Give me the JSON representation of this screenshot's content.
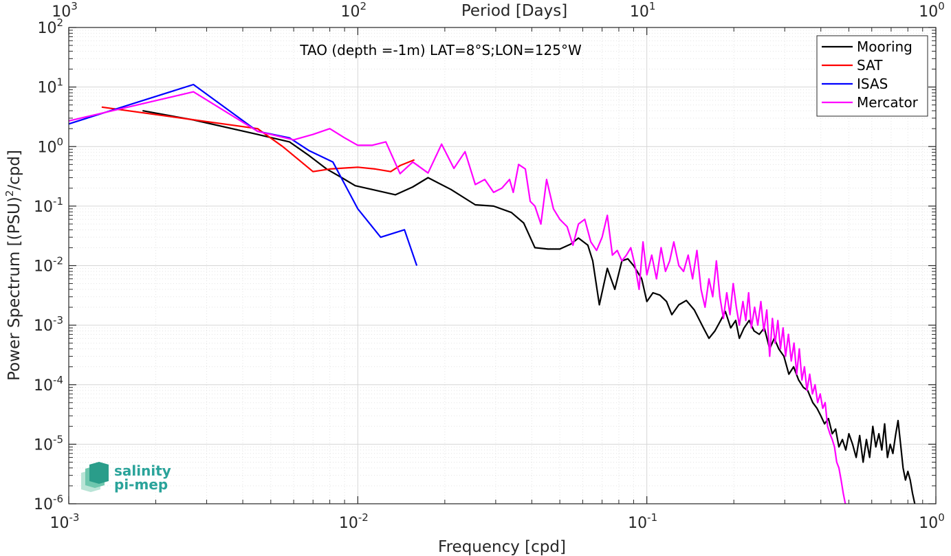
{
  "chart_data": {
    "type": "line",
    "title": "TAO (depth =-1m) LAT=8°S;LON=125°W",
    "xlabel": "Frequency [cpd]",
    "ylabel": "Power Spectrum [(PSU)",
    "ylabel_sup": "2",
    "ylabel_tail": "/cpd]",
    "x2label": "Period [Days]",
    "xscale": "log",
    "yscale": "log",
    "xlim": [
      0.001,
      1
    ],
    "ylim": [
      1e-06,
      100
    ],
    "grid": true,
    "legend_position": "top-right",
    "x_ticks": [
      {
        "base": "10",
        "exp": "-3"
      },
      {
        "base": "10",
        "exp": "-2"
      },
      {
        "base": "10",
        "exp": "-1"
      },
      {
        "base": "10",
        "exp": "0"
      }
    ],
    "x2_ticks": [
      {
        "base": "10",
        "exp": "3"
      },
      {
        "base": "10",
        "exp": "2"
      },
      {
        "base": "10",
        "exp": "1"
      },
      {
        "base": "10",
        "exp": "0"
      }
    ],
    "y_ticks": [
      {
        "base": "10",
        "exp": "-6"
      },
      {
        "base": "10",
        "exp": "-5"
      },
      {
        "base": "10",
        "exp": "-4"
      },
      {
        "base": "10",
        "exp": "-3"
      },
      {
        "base": "10",
        "exp": "-2"
      },
      {
        "base": "10",
        "exp": "-1"
      },
      {
        "base": "10",
        "exp": "0"
      },
      {
        "base": "10",
        "exp": "1"
      },
      {
        "base": "10",
        "exp": "2"
      }
    ],
    "series": [
      {
        "name": "Mooring",
        "color": "#000000",
        "points": [
          [
            0.0018,
            4.0
          ],
          [
            0.0027,
            2.8
          ],
          [
            0.0045,
            1.6
          ],
          [
            0.0058,
            1.2
          ],
          [
            0.0068,
            0.7
          ],
          [
            0.0078,
            0.42
          ],
          [
            0.0088,
            0.3
          ],
          [
            0.0098,
            0.22
          ],
          [
            0.0112,
            0.19
          ],
          [
            0.0135,
            0.155
          ],
          [
            0.0155,
            0.21
          ],
          [
            0.0175,
            0.3
          ],
          [
            0.021,
            0.19
          ],
          [
            0.0255,
            0.105
          ],
          [
            0.0295,
            0.1
          ],
          [
            0.034,
            0.078
          ],
          [
            0.0375,
            0.052
          ],
          [
            0.041,
            0.02
          ],
          [
            0.0455,
            0.019
          ],
          [
            0.05,
            0.019
          ],
          [
            0.0545,
            0.023
          ],
          [
            0.058,
            0.029
          ],
          [
            0.0625,
            0.022
          ],
          [
            0.065,
            0.012
          ],
          [
            0.0685,
            0.0022
          ],
          [
            0.073,
            0.009
          ],
          [
            0.0775,
            0.004
          ],
          [
            0.082,
            0.012
          ],
          [
            0.086,
            0.013
          ],
          [
            0.09,
            0.01
          ],
          [
            0.096,
            0.006
          ],
          [
            0.1,
            0.0025
          ],
          [
            0.105,
            0.0035
          ],
          [
            0.111,
            0.0032
          ],
          [
            0.117,
            0.0025
          ],
          [
            0.122,
            0.0015
          ],
          [
            0.129,
            0.0022
          ],
          [
            0.137,
            0.0026
          ],
          [
            0.146,
            0.0018
          ],
          [
            0.157,
            0.0009
          ],
          [
            0.164,
            0.0006
          ],
          [
            0.172,
            0.0008
          ],
          [
            0.18,
            0.0012
          ],
          [
            0.187,
            0.0017
          ],
          [
            0.195,
            0.0009
          ],
          [
            0.203,
            0.0012
          ],
          [
            0.209,
            0.0006
          ],
          [
            0.217,
            0.0009
          ],
          [
            0.226,
            0.0012
          ],
          [
            0.235,
            0.0008
          ],
          [
            0.245,
            0.0007
          ],
          [
            0.255,
            0.0009
          ],
          [
            0.266,
            0.0004
          ],
          [
            0.276,
            0.0006
          ],
          [
            0.286,
            0.0004
          ],
          [
            0.298,
            0.0003
          ],
          [
            0.31,
            0.00015
          ],
          [
            0.322,
            0.0002
          ],
          [
            0.335,
            0.00012
          ],
          [
            0.348,
            9e-05
          ],
          [
            0.36,
            8e-05
          ],
          [
            0.375,
            5e-05
          ],
          [
            0.388,
            4e-05
          ],
          [
            0.4,
            3e-05
          ],
          [
            0.412,
            2.2e-05
          ],
          [
            0.425,
            2.7e-05
          ],
          [
            0.438,
            1.5e-05
          ],
          [
            0.45,
            1.8e-05
          ],
          [
            0.462,
            9e-06
          ],
          [
            0.475,
            1.2e-05
          ],
          [
            0.488,
            8e-06
          ],
          [
            0.5,
            1.5e-05
          ],
          [
            0.515,
            1e-05
          ],
          [
            0.53,
            6e-06
          ],
          [
            0.545,
            1.4e-05
          ],
          [
            0.56,
            5e-06
          ],
          [
            0.575,
            1.2e-05
          ],
          [
            0.59,
            6e-06
          ],
          [
            0.605,
            2e-05
          ],
          [
            0.62,
            9e-06
          ],
          [
            0.635,
            1.5e-05
          ],
          [
            0.65,
            8e-06
          ],
          [
            0.665,
            2.2e-05
          ],
          [
            0.68,
            6e-06
          ],
          [
            0.695,
            1e-05
          ],
          [
            0.71,
            7e-06
          ],
          [
            0.725,
            1.4e-05
          ],
          [
            0.74,
            2.5e-05
          ],
          [
            0.755,
            1e-05
          ],
          [
            0.77,
            4e-06
          ],
          [
            0.785,
            2.5e-06
          ],
          [
            0.8,
            3.5e-06
          ],
          [
            0.815,
            2.5e-06
          ],
          [
            0.83,
            1.5e-06
          ],
          [
            0.845,
            1e-06
          ]
        ]
      },
      {
        "name": "SAT",
        "color": "#ff0000",
        "points": [
          [
            0.0013,
            4.6
          ],
          [
            0.0045,
            2.0
          ],
          [
            0.0055,
            1.0
          ],
          [
            0.007,
            0.38
          ],
          [
            0.008,
            0.42
          ],
          [
            0.01,
            0.45
          ],
          [
            0.0115,
            0.42
          ],
          [
            0.013,
            0.38
          ],
          [
            0.014,
            0.48
          ],
          [
            0.0157,
            0.6
          ]
        ]
      },
      {
        "name": "ISAS",
        "color": "#0000ff",
        "points": [
          [
            0.001,
            2.4
          ],
          [
            0.0027,
            11.0
          ],
          [
            0.0045,
            1.8
          ],
          [
            0.0058,
            1.4
          ],
          [
            0.0068,
            0.85
          ],
          [
            0.0082,
            0.55
          ],
          [
            0.01,
            0.09
          ],
          [
            0.012,
            0.03
          ],
          [
            0.0145,
            0.04
          ],
          [
            0.016,
            0.01
          ]
        ]
      },
      {
        "name": "Mercator",
        "color": "#ff00ff",
        "points": [
          [
            0.001,
            2.7
          ],
          [
            0.0027,
            8.3
          ],
          [
            0.0045,
            1.8
          ],
          [
            0.006,
            1.3
          ],
          [
            0.007,
            1.6
          ],
          [
            0.008,
            2.0
          ],
          [
            0.009,
            1.4
          ],
          [
            0.01,
            1.05
          ],
          [
            0.0112,
            1.05
          ],
          [
            0.0125,
            1.2
          ],
          [
            0.014,
            0.35
          ],
          [
            0.0155,
            0.55
          ],
          [
            0.0175,
            0.36
          ],
          [
            0.0195,
            1.1
          ],
          [
            0.0215,
            0.43
          ],
          [
            0.0235,
            0.82
          ],
          [
            0.0255,
            0.23
          ],
          [
            0.0275,
            0.28
          ],
          [
            0.0295,
            0.17
          ],
          [
            0.0315,
            0.2
          ],
          [
            0.0335,
            0.28
          ],
          [
            0.0345,
            0.17
          ],
          [
            0.036,
            0.5
          ],
          [
            0.038,
            0.42
          ],
          [
            0.0395,
            0.12
          ],
          [
            0.041,
            0.1
          ],
          [
            0.043,
            0.05
          ],
          [
            0.045,
            0.28
          ],
          [
            0.0475,
            0.09
          ],
          [
            0.05,
            0.06
          ],
          [
            0.053,
            0.045
          ],
          [
            0.0555,
            0.022
          ],
          [
            0.058,
            0.05
          ],
          [
            0.061,
            0.06
          ],
          [
            0.064,
            0.025
          ],
          [
            0.067,
            0.018
          ],
          [
            0.07,
            0.03
          ],
          [
            0.073,
            0.07
          ],
          [
            0.076,
            0.015
          ],
          [
            0.079,
            0.018
          ],
          [
            0.082,
            0.012
          ],
          [
            0.085,
            0.015
          ],
          [
            0.088,
            0.02
          ],
          [
            0.091,
            0.01
          ],
          [
            0.094,
            0.004
          ],
          [
            0.097,
            0.025
          ],
          [
            0.1,
            0.007
          ],
          [
            0.104,
            0.015
          ],
          [
            0.108,
            0.006
          ],
          [
            0.112,
            0.02
          ],
          [
            0.116,
            0.008
          ],
          [
            0.12,
            0.012
          ],
          [
            0.124,
            0.025
          ],
          [
            0.129,
            0.01
          ],
          [
            0.134,
            0.008
          ],
          [
            0.139,
            0.015
          ],
          [
            0.144,
            0.006
          ],
          [
            0.149,
            0.018
          ],
          [
            0.154,
            0.004
          ],
          [
            0.159,
            0.002
          ],
          [
            0.164,
            0.006
          ],
          [
            0.169,
            0.003
          ],
          [
            0.174,
            0.012
          ],
          [
            0.179,
            0.003
          ],
          [
            0.184,
            0.0013
          ],
          [
            0.189,
            0.0035
          ],
          [
            0.194,
            0.0015
          ],
          [
            0.199,
            0.005
          ],
          [
            0.204,
            0.002
          ],
          [
            0.209,
            0.001
          ],
          [
            0.215,
            0.0025
          ],
          [
            0.22,
            0.0012
          ],
          [
            0.225,
            0.0035
          ],
          [
            0.23,
            0.0009
          ],
          [
            0.236,
            0.002
          ],
          [
            0.242,
            0.001
          ],
          [
            0.248,
            0.0025
          ],
          [
            0.254,
            0.0008
          ],
          [
            0.26,
            0.0018
          ],
          [
            0.266,
            0.0003
          ],
          [
            0.272,
            0.0013
          ],
          [
            0.278,
            0.0005
          ],
          [
            0.284,
            0.0012
          ],
          [
            0.29,
            0.0004
          ],
          [
            0.296,
            0.0009
          ],
          [
            0.302,
            0.0003
          ],
          [
            0.309,
            0.0007
          ],
          [
            0.316,
            0.00025
          ],
          [
            0.323,
            0.0005
          ],
          [
            0.33,
            0.00015
          ],
          [
            0.337,
            0.0004
          ],
          [
            0.344,
            0.00012
          ],
          [
            0.351,
            0.0002
          ],
          [
            0.358,
            8e-05
          ],
          [
            0.366,
            0.00015
          ],
          [
            0.374,
            7e-05
          ],
          [
            0.382,
            0.0001
          ],
          [
            0.39,
            5e-05
          ],
          [
            0.398,
            7e-05
          ],
          [
            0.406,
            4e-05
          ],
          [
            0.414,
            5e-05
          ],
          [
            0.422,
            2e-05
          ],
          [
            0.43,
            1.5e-05
          ],
          [
            0.438,
            1.2e-05
          ],
          [
            0.446,
            9e-06
          ],
          [
            0.454,
            5e-06
          ],
          [
            0.462,
            4e-06
          ],
          [
            0.47,
            2.5e-06
          ],
          [
            0.478,
            1.5e-06
          ],
          [
            0.486,
            1e-06
          ]
        ]
      }
    ]
  },
  "logo": {
    "line1": "salinity",
    "line2": "pi-mep"
  }
}
